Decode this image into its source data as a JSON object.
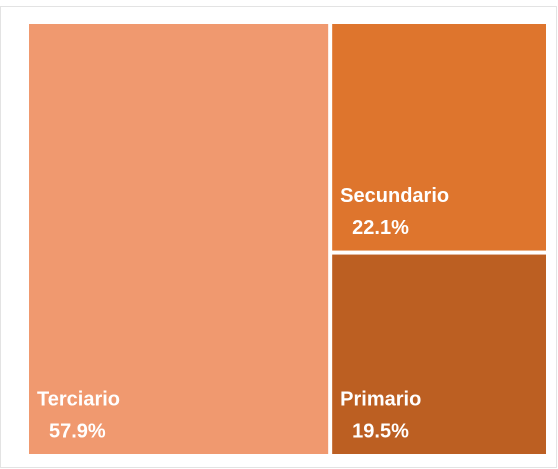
{
  "chart_data": {
    "type": "treemap",
    "categories": [
      "Terciario",
      "Secundario",
      "Primario"
    ],
    "values": [
      57.9,
      22.1,
      19.5
    ],
    "value_labels": [
      "57.9%",
      "22.1%",
      "19.5%"
    ],
    "colors": [
      "#f0996f",
      "#de752d",
      "#bc5f22"
    ]
  }
}
